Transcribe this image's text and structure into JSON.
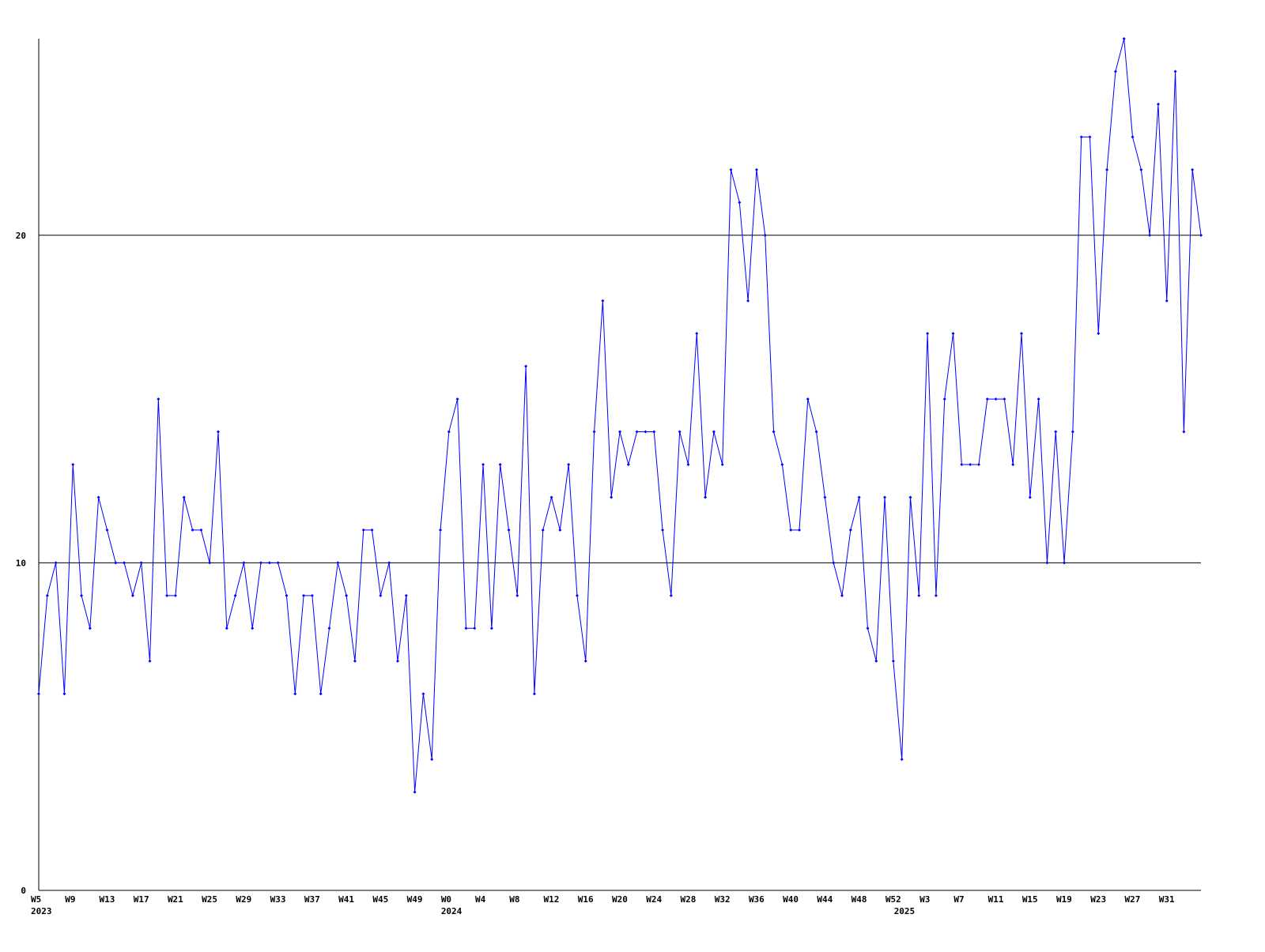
{
  "chart_data": {
    "type": "line",
    "categories": [
      "W5",
      null,
      null,
      null,
      "W9",
      null,
      null,
      null,
      "W13",
      null,
      null,
      null,
      "W17",
      null,
      null,
      null,
      "W21",
      null,
      null,
      null,
      "W25",
      null,
      null,
      null,
      "W29",
      null,
      null,
      null,
      "W33",
      null,
      null,
      null,
      "W37",
      null,
      null,
      null,
      "W41",
      null,
      null,
      null,
      "W45",
      null,
      null,
      null,
      "W49",
      null,
      null,
      null,
      "W0",
      null,
      null,
      null,
      "W4",
      null,
      null,
      null,
      "W8",
      null,
      null,
      null,
      "W12",
      null,
      null,
      null,
      "W16",
      null,
      null,
      null,
      "W20",
      null,
      null,
      null,
      "W24",
      null,
      null,
      null,
      "W28",
      null,
      null,
      null,
      "W32",
      null,
      null,
      null,
      "W36",
      null,
      null,
      null,
      "W40",
      null,
      null,
      null,
      "W44",
      null,
      null,
      null,
      "W48",
      null,
      null,
      null,
      "W52",
      null,
      null,
      null,
      "W3",
      null,
      null,
      null,
      "W7",
      null,
      null,
      null,
      "W11",
      null,
      null,
      null,
      "W15",
      null,
      null,
      null,
      "W19",
      null,
      null,
      null,
      "W23",
      null,
      null,
      null,
      "W27",
      null,
      null,
      null,
      "W31",
      null,
      null,
      null,
      null
    ],
    "years": [
      "2023",
      null,
      null,
      null,
      null,
      null,
      null,
      null,
      null,
      null,
      null,
      null,
      null,
      null,
      null,
      null,
      null,
      null,
      null,
      null,
      null,
      null,
      null,
      null,
      null,
      null,
      null,
      null,
      null,
      null,
      null,
      null,
      null,
      null,
      null,
      null,
      null,
      null,
      null,
      null,
      null,
      null,
      null,
      null,
      null,
      null,
      null,
      null,
      "2024",
      null,
      null,
      null,
      null,
      null,
      null,
      null,
      null,
      null,
      null,
      null,
      null,
      null,
      null,
      null,
      null,
      null,
      null,
      null,
      null,
      null,
      null,
      null,
      null,
      null,
      null,
      null,
      null,
      null,
      null,
      null,
      null,
      null,
      null,
      null,
      null,
      null,
      null,
      null,
      null,
      null,
      null,
      null,
      null,
      null,
      null,
      null,
      null,
      null,
      null,
      null,
      null,
      "2025",
      null,
      null,
      null,
      null,
      null,
      null,
      null,
      null,
      null,
      null,
      null,
      null,
      null,
      null,
      null,
      null,
      null,
      null,
      null,
      null,
      null,
      null,
      null,
      null,
      null,
      null,
      null,
      null,
      null,
      null,
      null,
      null,
      null,
      null,
      null
    ],
    "series": [
      {
        "color": "#0000ff",
        "values": [
          6,
          9,
          10,
          6,
          13,
          9,
          8,
          12,
          11,
          10,
          10,
          9,
          10,
          7,
          15,
          9,
          9,
          12,
          11,
          11,
          10,
          14,
          8,
          9,
          10,
          8,
          10,
          10,
          10,
          9,
          6,
          9,
          9,
          6,
          8,
          10,
          9,
          7,
          11,
          11,
          9,
          10,
          7,
          9,
          3,
          6,
          4,
          11,
          14,
          15,
          8,
          8,
          13,
          8,
          13,
          11,
          9,
          16,
          6,
          11,
          12,
          11,
          13,
          9,
          7,
          14,
          18,
          12,
          14,
          13,
          14,
          14,
          14,
          11,
          9,
          14,
          13,
          17,
          12,
          14,
          13,
          22,
          21,
          18,
          22,
          20,
          14,
          13,
          11,
          11,
          15,
          14,
          12,
          10,
          9,
          11,
          12,
          8,
          7,
          12,
          7,
          4,
          12,
          9,
          17,
          9,
          15,
          17,
          13,
          13,
          13,
          15,
          15,
          15,
          13,
          17,
          12,
          15,
          10,
          14,
          10,
          14,
          23,
          23,
          17,
          22,
          25,
          26,
          23,
          22,
          20,
          24,
          18,
          25,
          14,
          22,
          20
        ]
      }
    ],
    "ylim": [
      0,
      26
    ],
    "yticks": [
      0,
      10,
      20
    ],
    "grid": true
  }
}
